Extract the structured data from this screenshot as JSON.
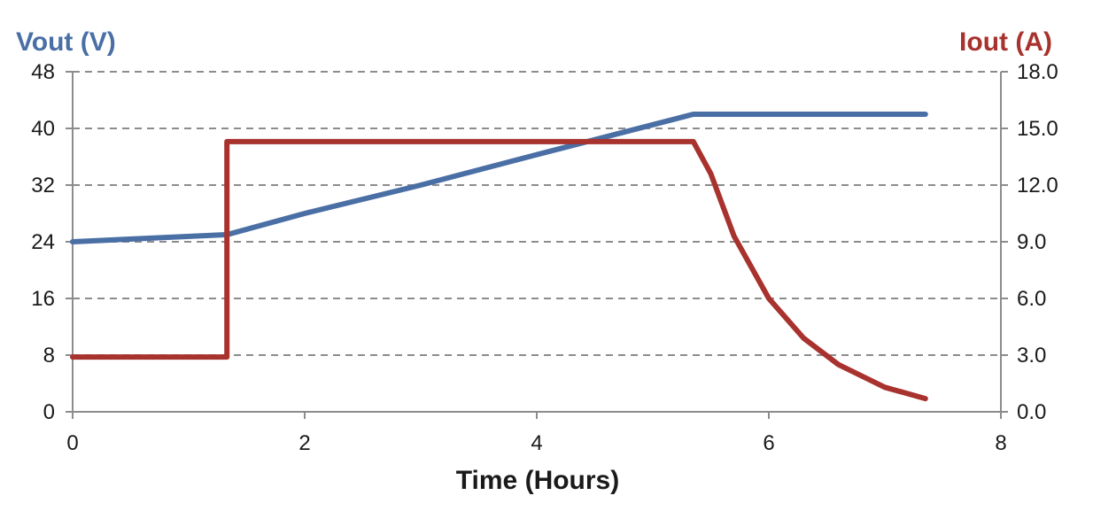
{
  "chart_data": {
    "type": "line",
    "xlabel": "Time (Hours)",
    "xlim": [
      0,
      8
    ],
    "x_ticks": [
      "0",
      "2",
      "4",
      "6",
      "8"
    ],
    "y_left": {
      "label": "Vout (V)",
      "ylim": [
        0,
        48
      ],
      "ticks": [
        "0",
        "8",
        "16",
        "24",
        "32",
        "40",
        "48"
      ]
    },
    "y_right": {
      "label": "Iout (A)",
      "ylim": [
        0,
        18
      ],
      "ticks": [
        "0.0",
        "3.0",
        "6.0",
        "9.0",
        "12.0",
        "15.0",
        "18.0"
      ]
    },
    "grid": "horizontal-dashed",
    "series": [
      {
        "name": "Vout (V)",
        "axis": "left",
        "color": "#4a6fa5",
        "points": [
          [
            0,
            24
          ],
          [
            1.33,
            25
          ],
          [
            2,
            28
          ],
          [
            3,
            32
          ],
          [
            4,
            36.3
          ],
          [
            5.35,
            42
          ],
          [
            7.35,
            42
          ]
        ]
      },
      {
        "name": "Iout (A)",
        "axis": "right",
        "color": "#a8322d",
        "points": [
          [
            0,
            2.9
          ],
          [
            1.33,
            2.9
          ],
          [
            1.33,
            14.3
          ],
          [
            5.35,
            14.3
          ],
          [
            5.5,
            12.6
          ],
          [
            5.7,
            9.3
          ],
          [
            6.0,
            6.0
          ],
          [
            6.3,
            3.9
          ],
          [
            6.6,
            2.5
          ],
          [
            7.0,
            1.3
          ],
          [
            7.35,
            0.7
          ]
        ]
      }
    ]
  }
}
